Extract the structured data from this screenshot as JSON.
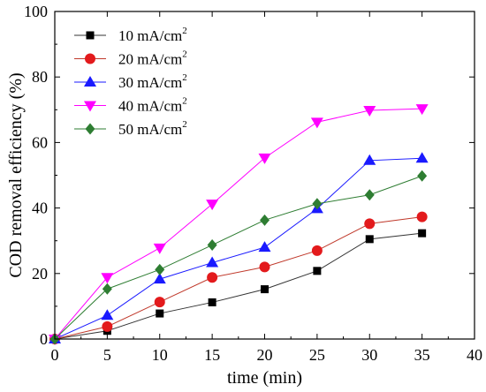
{
  "chart_data": {
    "type": "line",
    "xlabel": "time (min)",
    "ylabel": "COD removal efficiency (%)",
    "xlim": [
      0,
      40
    ],
    "ylim": [
      0,
      100
    ],
    "x_ticks": [
      0,
      5,
      10,
      15,
      20,
      25,
      30,
      35,
      40
    ],
    "y_ticks": [
      0,
      20,
      40,
      60,
      80,
      100
    ],
    "grid": false,
    "legend_position": "top-left",
    "x": [
      0,
      5,
      10,
      15,
      20,
      25,
      30,
      35
    ],
    "series": [
      {
        "name": "10 mA/cm2",
        "label_base": "10 mA/cm",
        "label_sup": "2",
        "marker": "square",
        "color": "#000000",
        "line_color": "#333333",
        "values": [
          0,
          2.5,
          7.8,
          11.2,
          15.2,
          20.8,
          30.5,
          32.3
        ]
      },
      {
        "name": "20 mA/cm2",
        "label_base": "20 mA/cm",
        "label_sup": "2",
        "marker": "circle",
        "color": "#e31a1c",
        "line_color": "#c0392b",
        "values": [
          0,
          3.8,
          11.3,
          18.8,
          22.0,
          27.0,
          35.2,
          37.3
        ]
      },
      {
        "name": "30 mA/cm2",
        "label_base": "30 mA/cm",
        "label_sup": "2",
        "marker": "triangle-up",
        "color": "#1a1aff",
        "line_color": "#1a1aff",
        "values": [
          0,
          7.2,
          18.3,
          23.3,
          28.0,
          39.8,
          54.5,
          55.2
        ]
      },
      {
        "name": "40 mA/cm2",
        "label_base": "40 mA/cm",
        "label_sup": "2",
        "marker": "triangle-down",
        "color": "#ff00ff",
        "line_color": "#ff00ff",
        "values": [
          0,
          18.8,
          27.8,
          41.2,
          55.3,
          66.2,
          69.8,
          70.3
        ]
      },
      {
        "name": "50 mA/cm2",
        "label_base": "50 mA/cm",
        "label_sup": "2",
        "marker": "diamond",
        "color": "#2e7d32",
        "line_color": "#2e7d32",
        "values": [
          0,
          15.3,
          21.2,
          28.7,
          36.3,
          41.3,
          44.0,
          49.8
        ]
      }
    ]
  }
}
